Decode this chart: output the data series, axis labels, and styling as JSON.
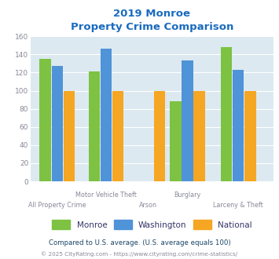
{
  "title_line1": "2019 Monroe",
  "title_line2": "Property Crime Comparison",
  "categories": [
    "All Property Crime",
    "Motor Vehicle Theft",
    "Arson",
    "Burglary",
    "Larceny & Theft"
  ],
  "series": {
    "Monroe": [
      135,
      121,
      null,
      88,
      148
    ],
    "Washington": [
      127,
      146,
      null,
      133,
      123
    ],
    "National": [
      100,
      100,
      100,
      100,
      100
    ]
  },
  "colors": {
    "Monroe": "#7dc243",
    "Washington": "#4f93d8",
    "National": "#f5a623"
  },
  "ylim": [
    0,
    160
  ],
  "yticks": [
    0,
    20,
    40,
    60,
    80,
    100,
    120,
    140,
    160
  ],
  "bar_width": 0.18,
  "plot_bg": "#dce9f0",
  "fig_bg": "#ffffff",
  "title_color": "#1a6bbf",
  "tick_color": "#888899",
  "legend_label_color": "#333366",
  "footnote1": "Compared to U.S. average. (U.S. average equals 100)",
  "footnote2": "© 2025 CityRating.com - https://www.cityrating.com/crime-statistics/",
  "footnote1_color": "#1a4466",
  "footnote2_color": "#888899",
  "upper_labels": [
    1,
    3
  ],
  "lower_labels": [
    0,
    2,
    4
  ],
  "label_upper_names": [
    "Motor Vehicle Theft",
    "Burglary"
  ],
  "label_lower_names": [
    "All Property Crime",
    "Arson",
    "Larceny & Theft"
  ]
}
